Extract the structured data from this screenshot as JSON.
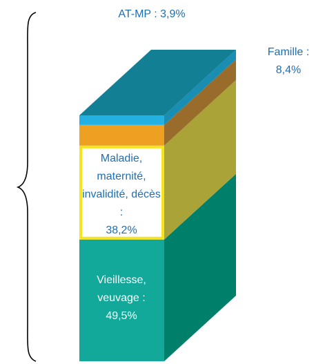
{
  "chart_data": {
    "type": "stacked-3d-column",
    "top_color": "#137f95",
    "series": [
      {
        "name": "Vieillesse, veuvage :",
        "values": [
          49.5
        ],
        "value_labels": [
          "49,5%"
        ],
        "color": "#12a99a",
        "side_color": "#00806a",
        "label_color": "#ffffff"
      },
      {
        "name": "Maladie, maternité, invalidité, décès :",
        "values": [
          38.2
        ],
        "value_labels": [
          "38,2%"
        ],
        "color": "#ffffff",
        "border_color": "#f7e51c",
        "side_color": "#aaa338",
        "label_color": "#1b6fb4"
      },
      {
        "name": "Famille :",
        "values": [
          8.4
        ],
        "value_labels": [
          "8,4%"
        ],
        "color": "#eea120",
        "side_color": "#9a6c2c",
        "label_color": "#1b6fb4"
      },
      {
        "name": "AT-MP :",
        "values": [
          3.9
        ],
        "value_labels": [
          "3,9%"
        ],
        "color": "#23b1e3",
        "side_color": "#1a8db2",
        "label_color": "#1b6fb4"
      }
    ]
  }
}
